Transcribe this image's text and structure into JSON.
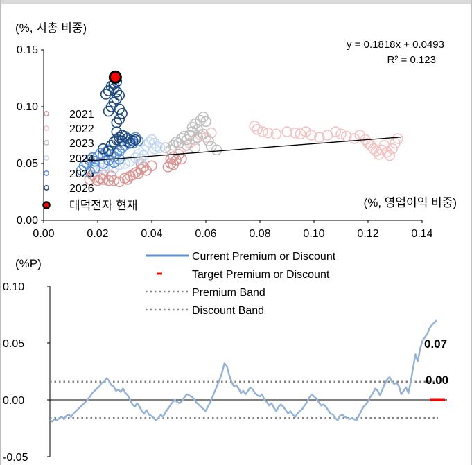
{
  "chart_data": [
    {
      "type": "scatter",
      "ylabel": "(%, 시총 비중)",
      "xlabel": "(%, 영업이익 비중)",
      "xlim": [
        0,
        0.14
      ],
      "ylim": [
        0,
        0.15
      ],
      "xticks": [
        "0.00",
        "0.02",
        "0.04",
        "0.06",
        "0.08",
        "0.10",
        "0.12",
        "0.14"
      ],
      "yticks": [
        "0.00",
        "0.05",
        "0.10",
        "0.15"
      ],
      "regression": {
        "equation": "y = 0.1818x + 0.0493",
        "r2": "R² = 0.123",
        "x_range": [
          0.013,
          0.132
        ]
      },
      "legend": [
        "2021",
        "2022",
        "2023",
        "2024",
        "2025",
        "2026",
        "대덕전자 현재"
      ],
      "series": [
        {
          "name": "2021",
          "color": "#d99694",
          "points": [
            [
              0.017,
              0.036
            ],
            [
              0.018,
              0.04
            ],
            [
              0.019,
              0.038
            ],
            [
              0.02,
              0.035
            ],
            [
              0.021,
              0.037
            ],
            [
              0.022,
              0.036
            ],
            [
              0.024,
              0.035
            ],
            [
              0.026,
              0.035
            ],
            [
              0.028,
              0.034
            ],
            [
              0.03,
              0.037
            ],
            [
              0.031,
              0.036
            ],
            [
              0.032,
              0.039
            ],
            [
              0.033,
              0.04
            ],
            [
              0.034,
              0.042
            ],
            [
              0.035,
              0.041
            ],
            [
              0.036,
              0.045
            ],
            [
              0.036,
              0.05
            ],
            [
              0.037,
              0.047
            ],
            [
              0.038,
              0.044
            ],
            [
              0.04,
              0.048
            ],
            [
              0.046,
              0.047
            ],
            [
              0.047,
              0.05
            ],
            [
              0.047,
              0.054
            ],
            [
              0.048,
              0.056
            ],
            [
              0.049,
              0.053
            ],
            [
              0.05,
              0.058
            ],
            [
              0.051,
              0.054
            ],
            [
              0.048,
              0.049
            ],
            [
              0.022,
              0.04
            ],
            [
              0.025,
              0.039
            ]
          ]
        },
        {
          "name": "2022",
          "color": "#f2c3c2",
          "points": [
            [
              0.052,
              0.065
            ],
            [
              0.054,
              0.068
            ],
            [
              0.056,
              0.071
            ],
            [
              0.058,
              0.075
            ],
            [
              0.06,
              0.073
            ],
            [
              0.062,
              0.077
            ],
            [
              0.078,
              0.083
            ],
            [
              0.079,
              0.08
            ],
            [
              0.081,
              0.078
            ],
            [
              0.083,
              0.077
            ],
            [
              0.086,
              0.076
            ],
            [
              0.09,
              0.078
            ],
            [
              0.093,
              0.077
            ],
            [
              0.095,
              0.076
            ],
            [
              0.097,
              0.078
            ],
            [
              0.099,
              0.075
            ],
            [
              0.102,
              0.073
            ],
            [
              0.105,
              0.075
            ],
            [
              0.108,
              0.078
            ],
            [
              0.11,
              0.076
            ],
            [
              0.112,
              0.074
            ],
            [
              0.115,
              0.072
            ],
            [
              0.117,
              0.075
            ],
            [
              0.119,
              0.071
            ],
            [
              0.12,
              0.068
            ],
            [
              0.121,
              0.066
            ],
            [
              0.122,
              0.063
            ],
            [
              0.123,
              0.061
            ],
            [
              0.124,
              0.058
            ],
            [
              0.125,
              0.062
            ],
            [
              0.126,
              0.066
            ],
            [
              0.127,
              0.06
            ],
            [
              0.128,
              0.057
            ],
            [
              0.129,
              0.063
            ],
            [
              0.13,
              0.068
            ],
            [
              0.131,
              0.072
            ]
          ]
        },
        {
          "name": "2023",
          "color": "#bfbfbf",
          "points": [
            [
              0.045,
              0.064
            ],
            [
              0.047,
              0.062
            ],
            [
              0.048,
              0.066
            ],
            [
              0.049,
              0.069
            ],
            [
              0.05,
              0.068
            ],
            [
              0.051,
              0.072
            ],
            [
              0.052,
              0.074
            ],
            [
              0.053,
              0.071
            ],
            [
              0.054,
              0.075
            ],
            [
              0.055,
              0.078
            ],
            [
              0.055,
              0.082
            ],
            [
              0.056,
              0.085
            ],
            [
              0.057,
              0.08
            ],
            [
              0.058,
              0.088
            ],
            [
              0.059,
              0.091
            ],
            [
              0.06,
              0.087
            ],
            [
              0.057,
              0.073
            ],
            [
              0.059,
              0.076
            ],
            [
              0.061,
              0.07
            ],
            [
              0.062,
              0.065
            ],
            [
              0.064,
              0.062
            ],
            [
              0.053,
              0.066
            ],
            [
              0.056,
              0.064
            ]
          ]
        },
        {
          "name": "2024",
          "color": "#c5d9f1",
          "points": [
            [
              0.018,
              0.047
            ],
            [
              0.02,
              0.045
            ],
            [
              0.022,
              0.046
            ],
            [
              0.024,
              0.048
            ],
            [
              0.026,
              0.046
            ],
            [
              0.028,
              0.049
            ],
            [
              0.03,
              0.05
            ],
            [
              0.032,
              0.052
            ],
            [
              0.034,
              0.055
            ],
            [
              0.035,
              0.058
            ],
            [
              0.037,
              0.062
            ],
            [
              0.038,
              0.066
            ],
            [
              0.039,
              0.069
            ],
            [
              0.04,
              0.071
            ],
            [
              0.041,
              0.068
            ],
            [
              0.042,
              0.065
            ],
            [
              0.043,
              0.064
            ],
            [
              0.037,
              0.057
            ],
            [
              0.036,
              0.054
            ],
            [
              0.041,
              0.063
            ]
          ]
        },
        {
          "name": "2025",
          "color": "#5b8fd4",
          "points": [
            [
              0.014,
              0.044
            ],
            [
              0.015,
              0.048
            ],
            [
              0.016,
              0.05
            ],
            [
              0.017,
              0.053
            ],
            [
              0.018,
              0.055
            ],
            [
              0.019,
              0.052
            ],
            [
              0.02,
              0.056
            ],
            [
              0.021,
              0.059
            ],
            [
              0.022,
              0.057
            ],
            [
              0.023,
              0.06
            ],
            [
              0.024,
              0.062
            ],
            [
              0.025,
              0.058
            ],
            [
              0.026,
              0.056
            ],
            [
              0.027,
              0.059
            ],
            [
              0.028,
              0.061
            ],
            [
              0.029,
              0.064
            ],
            [
              0.03,
              0.066
            ],
            [
              0.031,
              0.069
            ],
            [
              0.032,
              0.071
            ],
            [
              0.033,
              0.068
            ],
            [
              0.034,
              0.073
            ],
            [
              0.035,
              0.07
            ],
            [
              0.022,
              0.05
            ],
            [
              0.024,
              0.053
            ],
            [
              0.019,
              0.046
            ],
            [
              0.017,
              0.043
            ],
            [
              0.026,
              0.051
            ],
            [
              0.028,
              0.054
            ]
          ]
        },
        {
          "name": "2026",
          "color": "#1f497d",
          "points": [
            [
              0.022,
              0.063
            ],
            [
              0.024,
              0.061
            ],
            [
              0.025,
              0.066
            ],
            [
              0.026,
              0.069
            ],
            [
              0.027,
              0.071
            ],
            [
              0.028,
              0.073
            ],
            [
              0.029,
              0.07
            ],
            [
              0.03,
              0.074
            ],
            [
              0.031,
              0.072
            ],
            [
              0.032,
              0.068
            ],
            [
              0.033,
              0.07
            ],
            [
              0.034,
              0.071
            ],
            [
              0.029,
              0.075
            ],
            [
              0.027,
              0.078
            ],
            [
              0.024,
              0.096
            ],
            [
              0.025,
              0.1
            ],
            [
              0.026,
              0.104
            ],
            [
              0.027,
              0.107
            ],
            [
              0.028,
              0.11
            ],
            [
              0.027,
              0.113
            ],
            [
              0.026,
              0.116
            ],
            [
              0.025,
              0.118
            ],
            [
              0.024,
              0.114
            ],
            [
              0.023,
              0.111
            ],
            [
              0.028,
              0.098
            ],
            [
              0.029,
              0.094
            ],
            [
              0.028,
              0.089
            ],
            [
              0.027,
              0.086
            ],
            [
              0.026,
              0.12
            ],
            [
              0.027,
              0.122
            ]
          ]
        },
        {
          "name": "대덕전자 현재",
          "color": "#ff0000",
          "points": [
            [
              0.0265,
              0.126
            ]
          ]
        }
      ]
    },
    {
      "type": "line",
      "ylabel": "(%P)",
      "ylim": [
        -0.05,
        0.1
      ],
      "yticks": [
        "0.10",
        "0.05",
        "0.00",
        "-0.05"
      ],
      "legend": [
        "Current Premium or Discount",
        "Target Premium or Discount",
        "Premium Band",
        "Discount Band"
      ],
      "premium_band": 0.016,
      "discount_band": -0.016,
      "current_label": "0.07",
      "target_label": "0.00",
      "target_value": 0.0,
      "series_values": [
        -0.018,
        -0.019,
        -0.017,
        -0.018,
        -0.016,
        -0.015,
        -0.017,
        -0.014,
        -0.013,
        -0.015,
        -0.012,
        -0.01,
        -0.008,
        -0.006,
        -0.004,
        -0.002,
        0.0,
        0.003,
        0.006,
        0.008,
        0.01,
        0.012,
        0.015,
        0.016,
        0.019,
        0.017,
        0.013,
        0.012,
        0.008,
        0.009,
        0.007,
        0.01,
        0.006,
        0.004,
        0.0,
        -0.004,
        -0.006,
        -0.003,
        -0.006,
        -0.01,
        -0.012,
        -0.009,
        -0.013,
        -0.014,
        -0.016,
        -0.018,
        -0.016,
        -0.013,
        -0.015,
        -0.011,
        -0.008,
        -0.005,
        -0.002,
        0.0,
        -0.002,
        -0.003,
        -0.001,
        0.002,
        0.005,
        0.004,
        0.003,
        0.001,
        -0.002,
        -0.004,
        -0.006,
        -0.008,
        -0.01,
        -0.006,
        -0.002,
        0.003,
        0.008,
        0.013,
        0.018,
        0.024,
        0.032,
        0.03,
        0.022,
        0.016,
        0.012,
        0.013,
        0.01,
        0.006,
        0.008,
        0.005,
        0.008,
        0.011,
        0.009,
        0.006,
        0.004,
        0.003,
        0.005,
        0.0,
        -0.002,
        -0.005,
        -0.003,
        -0.007,
        -0.01,
        -0.006,
        -0.004,
        -0.006,
        -0.009,
        -0.012,
        -0.01,
        -0.013,
        -0.015,
        -0.012,
        -0.01,
        -0.008,
        -0.005,
        -0.002,
        0.002,
        0.005,
        0.003,
        0.001,
        -0.002,
        -0.005,
        -0.004,
        -0.006,
        -0.009,
        -0.012,
        -0.013,
        -0.016,
        -0.018,
        -0.014,
        -0.013,
        -0.015,
        -0.016,
        -0.017,
        -0.016,
        -0.017,
        -0.018,
        -0.014,
        -0.01,
        -0.006,
        -0.004,
        -0.001,
        0.003,
        0.006,
        0.01,
        0.008,
        0.004,
        0.009,
        0.014,
        0.018,
        0.02,
        0.016,
        0.014,
        0.015,
        0.012,
        0.005,
        0.008,
        0.011,
        0.006,
        0.016,
        0.028,
        0.04,
        0.034,
        0.045,
        0.052,
        0.055,
        0.058,
        0.063,
        0.066,
        0.068,
        0.07
      ]
    }
  ]
}
